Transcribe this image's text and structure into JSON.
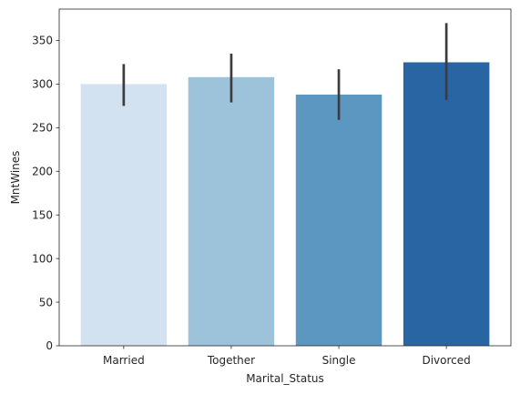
{
  "chart_data": {
    "type": "bar",
    "xlabel": "Marital_Status",
    "ylabel": "MntWines",
    "categories": [
      "Married",
      "Together",
      "Single",
      "Divorced"
    ],
    "values": [
      300,
      308,
      288,
      325
    ],
    "error_bars": [
      {
        "low": 275,
        "high": 323
      },
      {
        "low": 279,
        "high": 335
      },
      {
        "low": 259,
        "high": 317
      },
      {
        "low": 282,
        "high": 370
      }
    ],
    "colors": [
      "#d3e2f1",
      "#9dc3da",
      "#5b97c0",
      "#2865a2"
    ],
    "error_color": "#3c3c3c",
    "ylim": [
      0,
      386
    ],
    "yticks": [
      0,
      50,
      100,
      150,
      200,
      250,
      300,
      350
    ],
    "grid": false
  }
}
